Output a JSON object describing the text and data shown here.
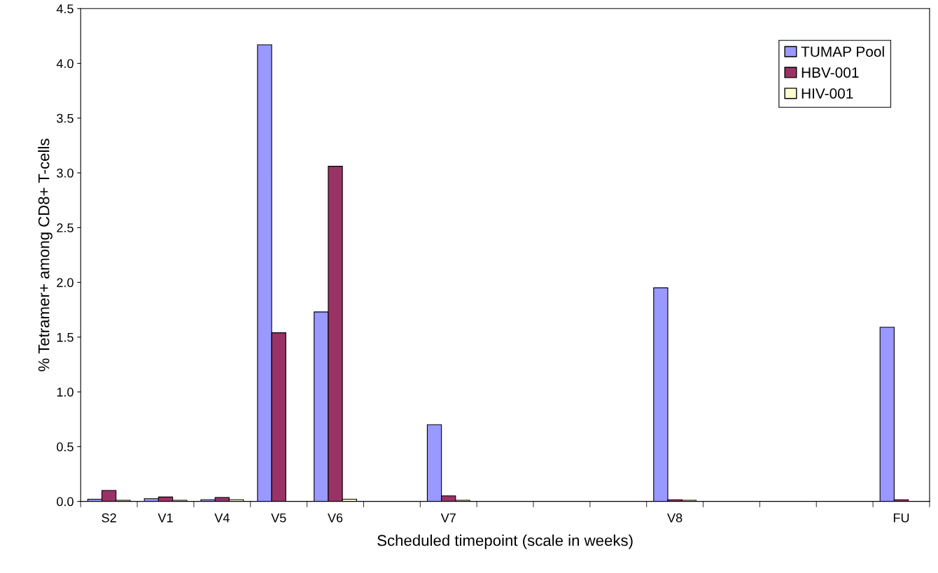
{
  "chart_data": {
    "type": "bar",
    "xlabel": "Scheduled timepoint (scale in weeks)",
    "ylabel": "% Tetramer+ among CD8+ T-cells",
    "categories": [
      "S2",
      "V1",
      "V4",
      "V5",
      "V6",
      null,
      "V7",
      null,
      null,
      null,
      "V8",
      null,
      null,
      null,
      "FU"
    ],
    "series": [
      {
        "name": "TUMAP Pool",
        "color": "#9999ff",
        "values": [
          0.02,
          0.025,
          0.015,
          4.17,
          1.73,
          null,
          0.7,
          null,
          null,
          null,
          1.95,
          null,
          null,
          null,
          1.59
        ]
      },
      {
        "name": "HBV-001",
        "color": "#993366",
        "values": [
          0.1,
          0.04,
          0.035,
          1.54,
          3.06,
          null,
          0.05,
          null,
          null,
          null,
          0.015,
          null,
          null,
          null,
          0.015
        ]
      },
      {
        "name": "HIV-001",
        "color": "#ffffcc",
        "values": [
          0.01,
          0.01,
          0.015,
          null,
          0.02,
          null,
          0.01,
          null,
          null,
          null,
          0.01,
          null,
          null,
          null,
          null
        ]
      }
    ],
    "ylim": [
      0,
      4.5
    ],
    "yticks": [
      {
        "value": 0,
        "label": "0.0"
      },
      {
        "value": 0.5,
        "label": "0.5"
      },
      {
        "value": 1,
        "label": "1.0"
      },
      {
        "value": 1.5,
        "label": "1.5"
      },
      {
        "value": 2,
        "label": "2.0"
      },
      {
        "value": 2.5,
        "label": "2.5"
      },
      {
        "value": 3,
        "label": "3.0"
      },
      {
        "value": 3.5,
        "label": "3.5"
      },
      {
        "value": 4,
        "label": "4.0"
      },
      {
        "value": 4.5,
        "label": "4.5"
      }
    ],
    "grid": false,
    "legend": "top right"
  }
}
